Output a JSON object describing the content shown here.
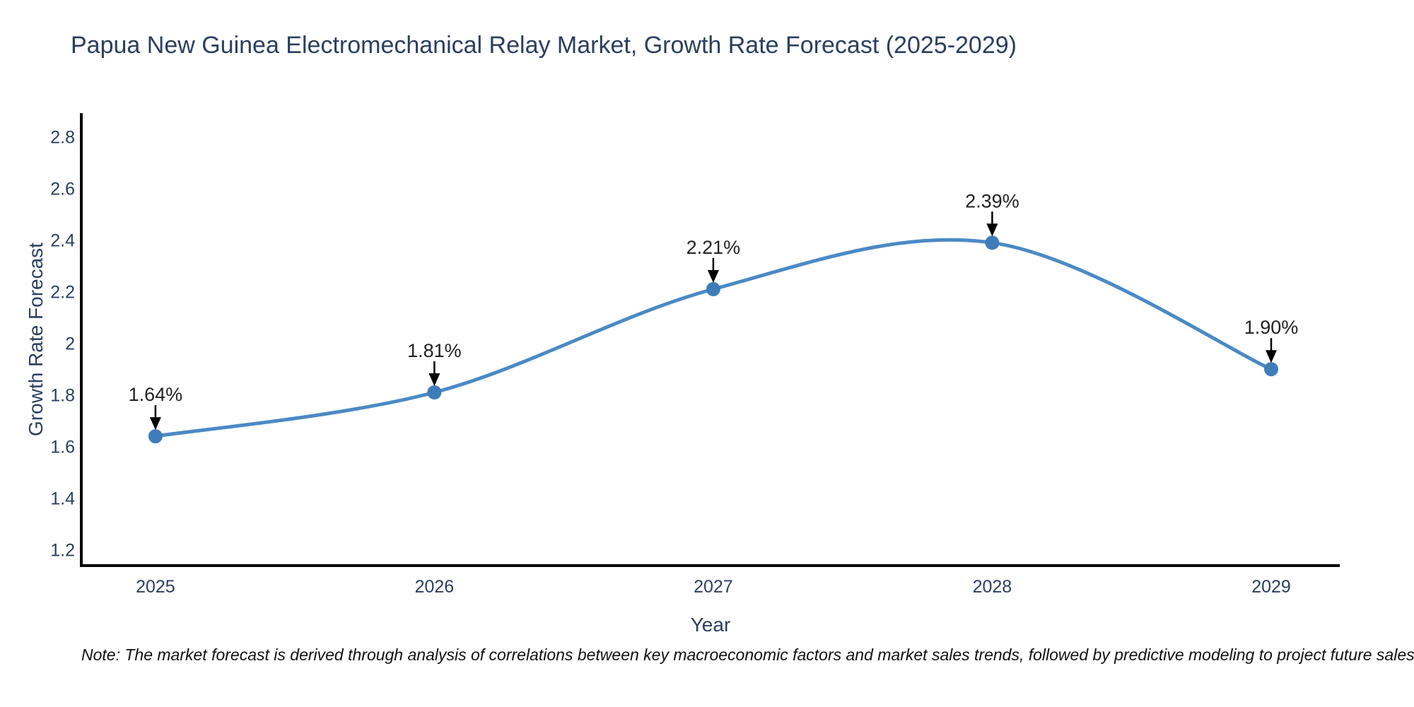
{
  "chart_data": {
    "type": "line",
    "title": "Papua New Guinea Electromechanical Relay Market, Growth Rate Forecast (2025-2029)",
    "xlabel": "Year",
    "ylabel": "Growth Rate Forecast",
    "note": "Note: The market forecast is derived through analysis of correlations between key macroeconomic factors and market sales trends, followed by predictive modeling to project future sales",
    "x": [
      2025,
      2026,
      2027,
      2028,
      2029
    ],
    "x_tick_labels": [
      "2025",
      "2026",
      "2027",
      "2028",
      "2029"
    ],
    "series": [
      {
        "name": "Growth Rate Forecast",
        "values": [
          1.64,
          1.81,
          2.21,
          2.39,
          1.9
        ]
      }
    ],
    "point_labels": [
      "1.64%",
      "1.81%",
      "2.21%",
      "2.39%",
      "1.90%"
    ],
    "y_ticks": [
      1.2,
      1.4,
      1.6,
      1.8,
      2,
      2.2,
      2.4,
      2.6,
      2.8
    ],
    "y_tick_labels": [
      "1.2",
      "1.4",
      "1.6",
      "1.8",
      "2",
      "2.2",
      "2.4",
      "2.6",
      "2.8"
    ],
    "xlim": [
      2024.734,
      2029.246
    ],
    "ylim": [
      1.139,
      2.892
    ],
    "line_shape": "spline",
    "grid": false,
    "legend": "none",
    "colors": {
      "line": "#4a8ac5",
      "marker": "#3f7cba",
      "axis": "#000000",
      "text": "#2a3f5f",
      "annotation": "#222222",
      "arrow": "#000000",
      "background": "#ffffff"
    }
  }
}
